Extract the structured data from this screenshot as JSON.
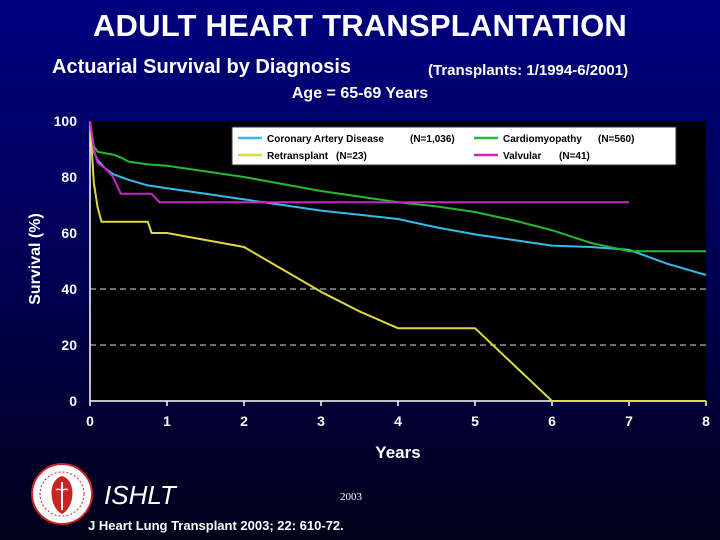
{
  "header": {
    "title": "ADULT HEART TRANSPLANTATION",
    "subtitle": "Actuarial Survival by Diagnosis",
    "subtitle_note": "(Transplants: 1/1994-6/2001)",
    "age_range": "Age = 65-69 Years"
  },
  "footer": {
    "org": "ISHLT",
    "year": "2003",
    "citation": "J Heart Lung Transplant 2003; 22: 610-72."
  },
  "colors": {
    "cad": "#33bbee",
    "cardiomyopathy": "#22bb33",
    "retransplant": "#e0d840",
    "valvular": "#cc22cc",
    "gridline": "#dddddd",
    "plot_bg": "#000000"
  },
  "chart_data": {
    "type": "line",
    "title": "",
    "xlabel": "Years",
    "ylabel": "Survival (%)",
    "xlim": [
      0,
      8
    ],
    "ylim": [
      0,
      100
    ],
    "xticks": [
      "0",
      "1",
      "2",
      "3",
      "4",
      "5",
      "6",
      "7",
      "8"
    ],
    "yticks": [
      "0",
      "20",
      "40",
      "60",
      "80",
      "100"
    ],
    "dashed_gridlines_at": [
      20,
      40
    ],
    "series": [
      {
        "key": "cad",
        "name": "Coronary Artery Disease",
        "n_label": "(N=1,036)",
        "x": [
          0,
          0.05,
          0.1,
          0.2,
          0.3,
          0.4,
          0.5,
          0.75,
          1,
          1.5,
          2,
          2.5,
          3,
          3.5,
          4,
          4.5,
          5,
          5.5,
          6,
          6.5,
          7,
          7.5,
          8
        ],
        "y": [
          100,
          89,
          86,
          83,
          81,
          80,
          79,
          77,
          76,
          74,
          72,
          70,
          68,
          66.5,
          65,
          62,
          59.5,
          57.5,
          55.5,
          55,
          54,
          49,
          45
        ]
      },
      {
        "key": "cardiomyopathy",
        "name": "Cardiomyopathy",
        "n_label": "(N=560)",
        "x": [
          0,
          0.05,
          0.1,
          0.3,
          0.4,
          0.5,
          0.75,
          1,
          1.5,
          2,
          2.5,
          3,
          3.5,
          4,
          4.5,
          5,
          5.5,
          6,
          6.5,
          7,
          7.5,
          8
        ],
        "y": [
          100,
          91,
          89,
          88,
          87,
          85.5,
          84.5,
          84,
          82,
          80,
          77.5,
          75,
          73,
          71,
          69.5,
          67.5,
          64.5,
          61,
          56.5,
          53.5,
          53.5,
          53.5
        ]
      },
      {
        "key": "retransplant",
        "name": "Retransplant",
        "n_label": "(N=23)",
        "x": [
          0,
          0.05,
          0.1,
          0.15,
          0.75,
          0.8,
          1,
          2,
          2.5,
          3,
          3.5,
          4,
          4.5,
          5,
          5.5,
          6,
          6.5,
          7,
          7.5,
          8
        ],
        "y": [
          100,
          78,
          69,
          64,
          64,
          60,
          60,
          55,
          47,
          39,
          32,
          26,
          26,
          26,
          13,
          0,
          0,
          0,
          0,
          0
        ]
      },
      {
        "key": "valvular",
        "name": "Valvular",
        "n_label": "(N=41)",
        "x": [
          0,
          0.05,
          0.1,
          0.2,
          0.3,
          0.4,
          0.8,
          0.9,
          2,
          7
        ],
        "y": [
          100,
          90,
          85,
          83,
          80,
          74,
          74,
          71,
          71,
          71
        ]
      }
    ]
  }
}
